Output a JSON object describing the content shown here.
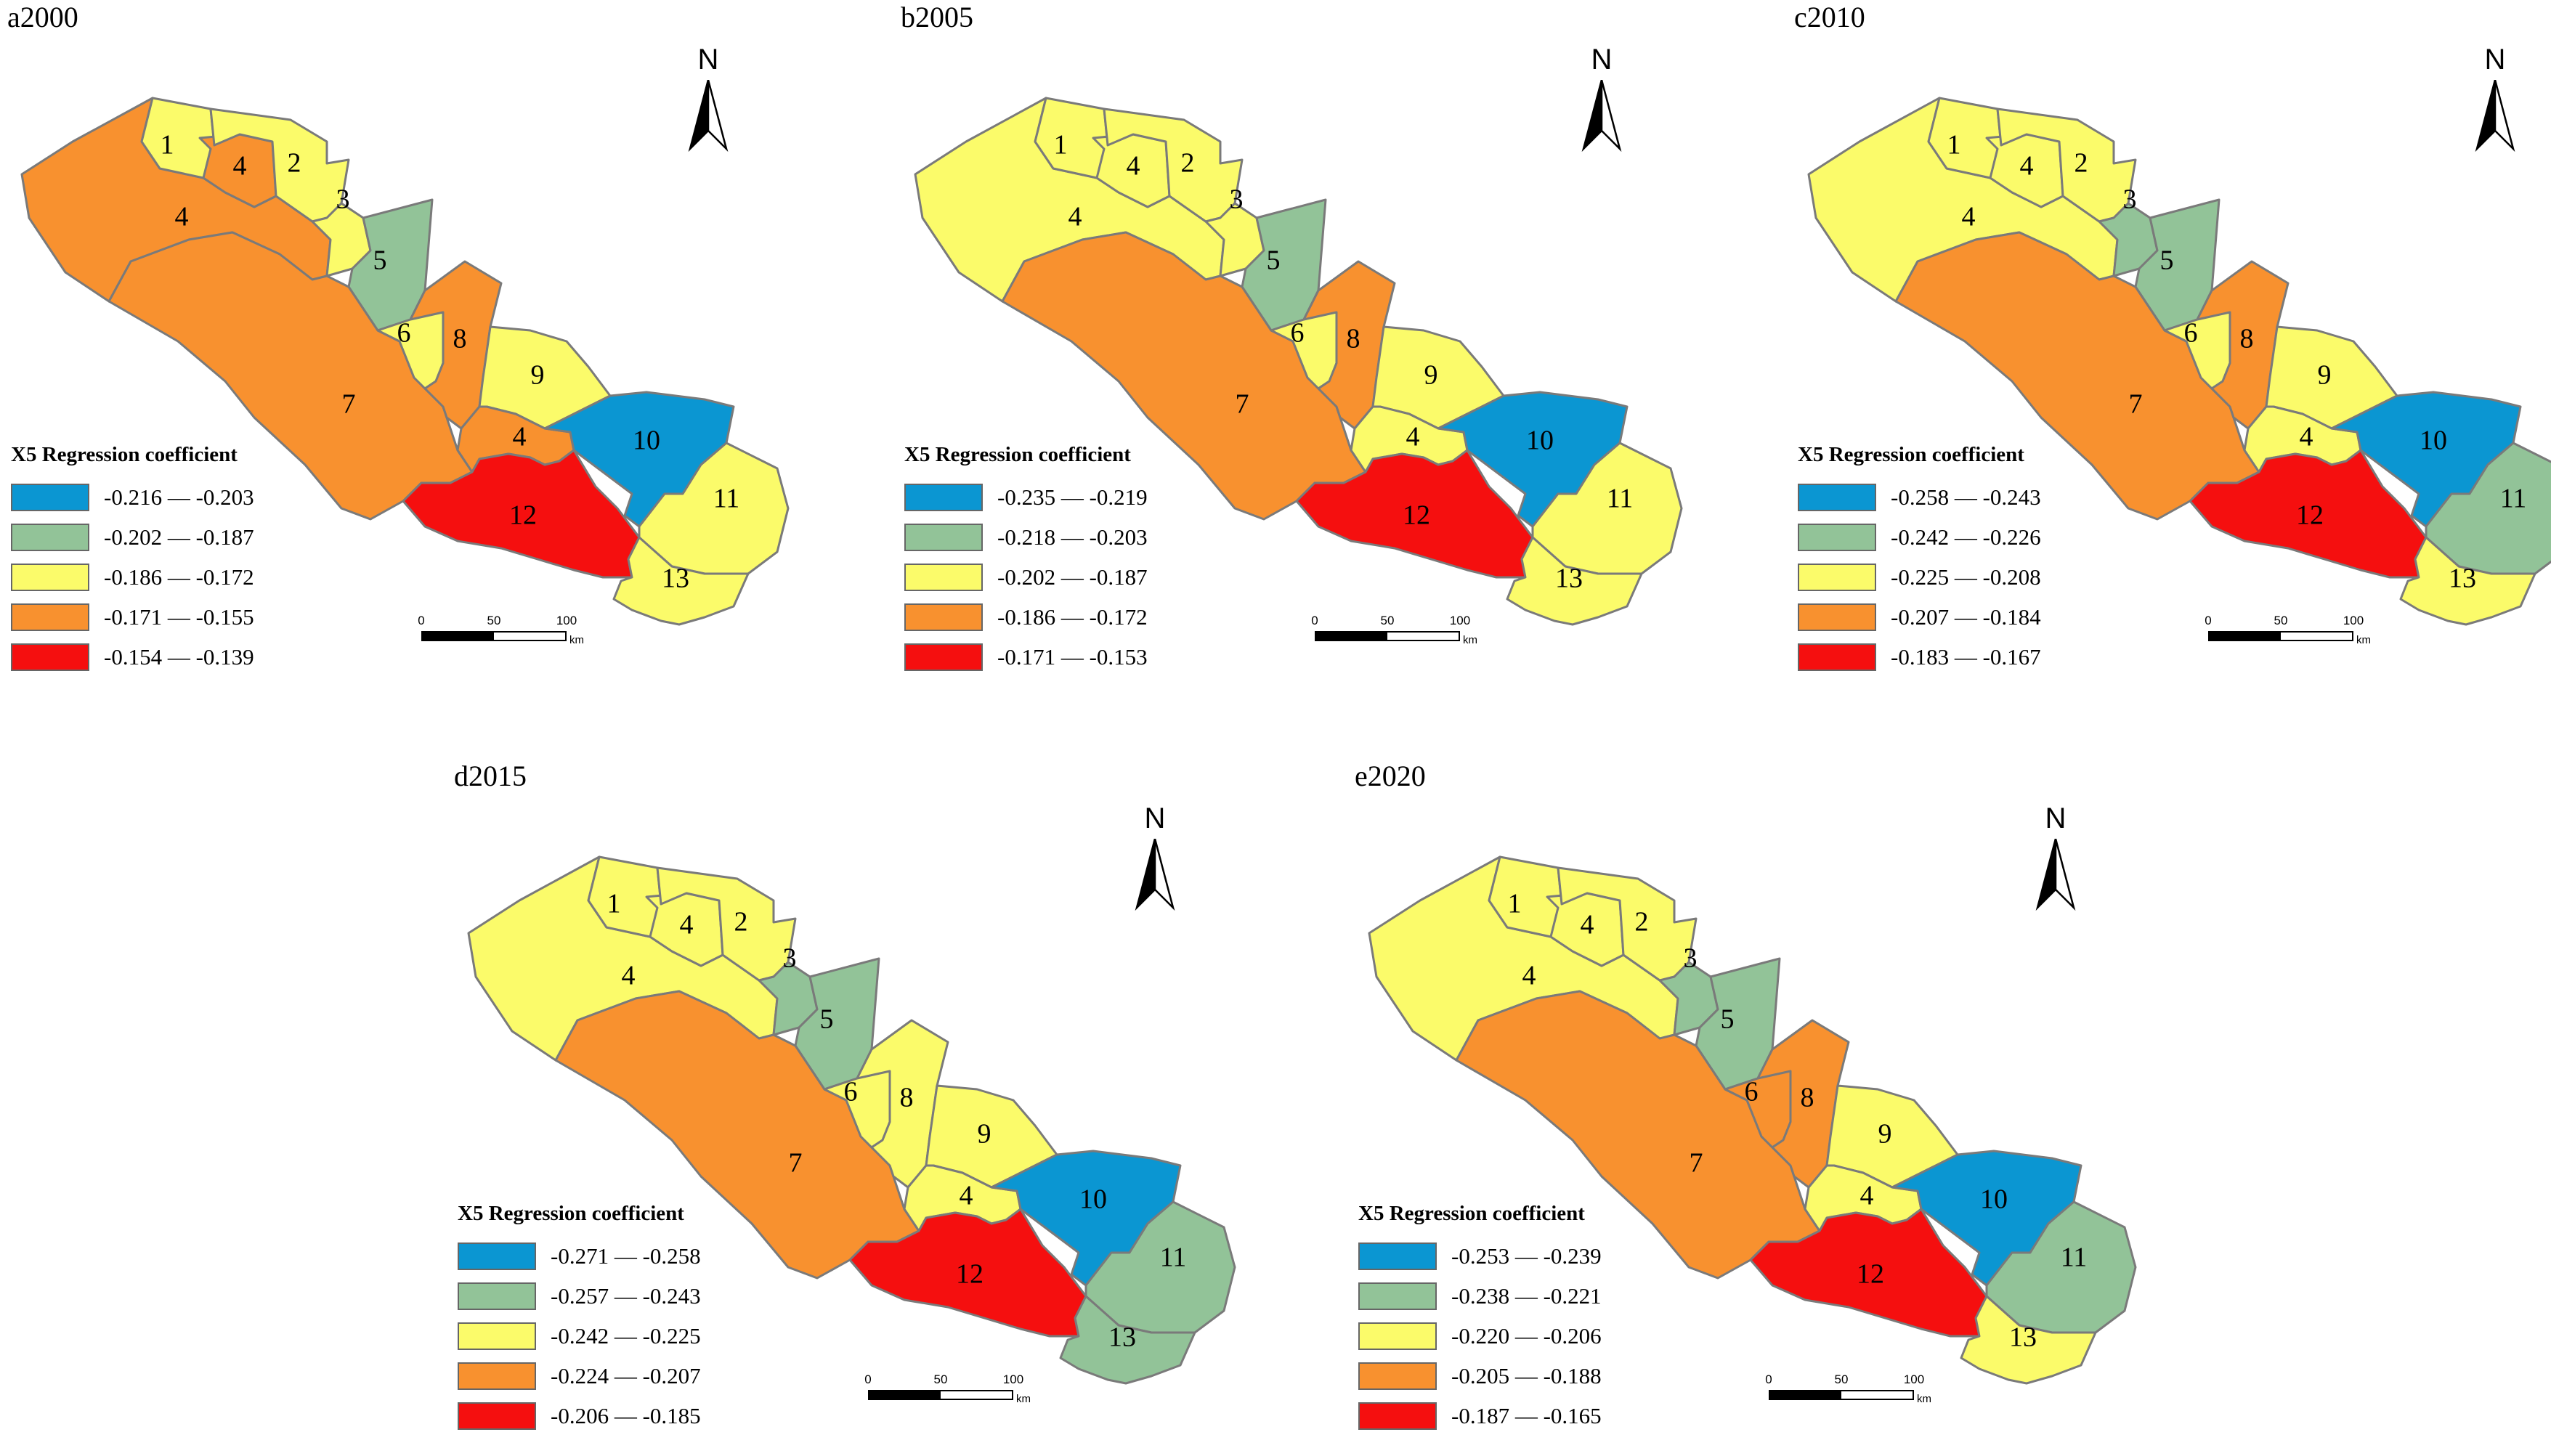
{
  "colors": {
    "blue": "#0B96D2",
    "green": "#92C398",
    "yellow": "#FBFB6A",
    "orange": "#F8912F",
    "red": "#F50F0F",
    "border": "#7a7a7a"
  },
  "north_letter": "N",
  "scale": {
    "ticks": [
      "0",
      "50",
      "100"
    ],
    "unit": "km"
  },
  "legend_title": "X5 Regression coefficient",
  "panels": [
    {
      "title": "a2000",
      "legend": [
        {
          "range": "-0.216 — -0.203",
          "color": "#0B96D2"
        },
        {
          "range": "-0.202 — -0.187",
          "color": "#92C398"
        },
        {
          "range": "-0.186 — -0.172",
          "color": "#FBFB6A"
        },
        {
          "range": "-0.171 — -0.155",
          "color": "#F8912F"
        },
        {
          "range": "-0.154 — -0.139",
          "color": "#F50F0F"
        }
      ],
      "regions": {
        "1": "#FBFB6A",
        "2": "#FBFB6A",
        "3": "#FBFB6A",
        "4": "#F8912F",
        "4b": "#F8912F",
        "4c": "#F8912F",
        "5": "#92C398",
        "6": "#FBFB6A",
        "7": "#F8912F",
        "8": "#F8912F",
        "9": "#FBFB6A",
        "10": "#0B96D2",
        "11": "#FBFB6A",
        "12": "#F50F0F",
        "13": "#FBFB6A"
      }
    },
    {
      "title": "b2005",
      "legend": [
        {
          "range": "-0.235 — -0.219",
          "color": "#0B96D2"
        },
        {
          "range": "-0.218 — -0.203",
          "color": "#92C398"
        },
        {
          "range": "-0.202 — -0.187",
          "color": "#FBFB6A"
        },
        {
          "range": "-0.186 — -0.172",
          "color": "#F8912F"
        },
        {
          "range": "-0.171 — -0.153",
          "color": "#F50F0F"
        }
      ],
      "regions": {
        "1": "#FBFB6A",
        "2": "#FBFB6A",
        "3": "#FBFB6A",
        "4": "#FBFB6A",
        "4b": "#FBFB6A",
        "4c": "#FBFB6A",
        "5": "#92C398",
        "6": "#FBFB6A",
        "7": "#F8912F",
        "8": "#F8912F",
        "9": "#FBFB6A",
        "10": "#0B96D2",
        "11": "#FBFB6A",
        "12": "#F50F0F",
        "13": "#FBFB6A"
      }
    },
    {
      "title": "c2010",
      "legend": [
        {
          "range": "-0.258 — -0.243",
          "color": "#0B96D2"
        },
        {
          "range": "-0.242 — -0.226",
          "color": "#92C398"
        },
        {
          "range": "-0.225 — -0.208",
          "color": "#FBFB6A"
        },
        {
          "range": "-0.207 — -0.184",
          "color": "#F8912F"
        },
        {
          "range": "-0.183 — -0.167",
          "color": "#F50F0F"
        }
      ],
      "regions": {
        "1": "#FBFB6A",
        "2": "#FBFB6A",
        "3": "#92C398",
        "4": "#FBFB6A",
        "4b": "#FBFB6A",
        "4c": "#FBFB6A",
        "5": "#92C398",
        "6": "#FBFB6A",
        "7": "#F8912F",
        "8": "#F8912F",
        "9": "#FBFB6A",
        "10": "#0B96D2",
        "11": "#92C398",
        "12": "#F50F0F",
        "13": "#FBFB6A"
      }
    },
    {
      "title": "d2015",
      "legend": [
        {
          "range": "-0.271 — -0.258",
          "color": "#0B96D2"
        },
        {
          "range": "-0.257 — -0.243",
          "color": "#92C398"
        },
        {
          "range": "-0.242 — -0.225",
          "color": "#FBFB6A"
        },
        {
          "range": "-0.224 — -0.207",
          "color": "#F8912F"
        },
        {
          "range": "-0.206 — -0.185",
          "color": "#F50F0F"
        }
      ],
      "regions": {
        "1": "#FBFB6A",
        "2": "#FBFB6A",
        "3": "#92C398",
        "4": "#FBFB6A",
        "4b": "#FBFB6A",
        "4c": "#FBFB6A",
        "5": "#92C398",
        "6": "#FBFB6A",
        "7": "#F8912F",
        "8": "#FBFB6A",
        "9": "#FBFB6A",
        "10": "#0B96D2",
        "11": "#92C398",
        "12": "#F50F0F",
        "13": "#92C398"
      }
    },
    {
      "title": "e2020",
      "legend": [
        {
          "range": "-0.253 — -0.239",
          "color": "#0B96D2"
        },
        {
          "range": "-0.238 — -0.221",
          "color": "#92C398"
        },
        {
          "range": "-0.220 — -0.206",
          "color": "#FBFB6A"
        },
        {
          "range": "-0.205 — -0.188",
          "color": "#F8912F"
        },
        {
          "range": "-0.187 — -0.165",
          "color": "#F50F0F"
        }
      ],
      "regions": {
        "1": "#FBFB6A",
        "2": "#FBFB6A",
        "3": "#92C398",
        "4": "#FBFB6A",
        "4b": "#FBFB6A",
        "4c": "#FBFB6A",
        "5": "#92C398",
        "6": "#F8912F",
        "7": "#F8912F",
        "8": "#F8912F",
        "9": "#FBFB6A",
        "10": "#0B96D2",
        "11": "#92C398",
        "12": "#F50F0F",
        "13": "#FBFB6A"
      }
    }
  ]
}
